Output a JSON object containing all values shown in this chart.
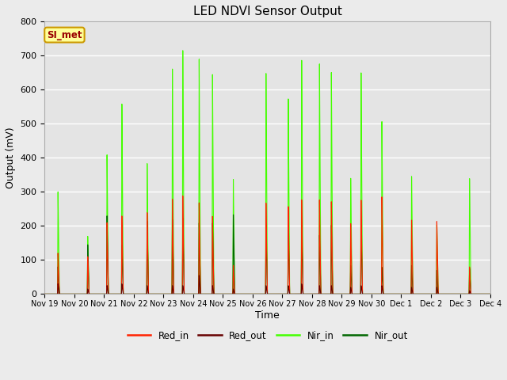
{
  "title": "LED NDVI Sensor Output",
  "xlabel": "Time",
  "ylabel": "Output (mV)",
  "ylim": [
    0,
    800
  ],
  "bg_color": "#ebebeb",
  "plot_bg": "#e4e4e4",
  "annotation_text": "SI_met",
  "annotation_bg": "#ffff99",
  "annotation_border": "#cc9900",
  "annotation_text_color": "#990000",
  "legend_entries": [
    "Red_in",
    "Red_out",
    "Nir_in",
    "Nir_out"
  ],
  "legend_colors": [
    "#ff2200",
    "#660000",
    "#44ff00",
    "#006600"
  ],
  "x_tick_labels": [
    "Nov 19",
    "Nov 20",
    "Nov 21",
    "Nov 22",
    "Nov 23",
    "Nov 24",
    "Nov 25",
    "Nov 26",
    "Nov 27",
    "Nov 28",
    "Nov 29",
    "Nov 30",
    "Dec 1",
    "Dec 2",
    "Dec 3",
    "Dec 4"
  ],
  "grid_color": "#ffffff",
  "spike_positions": [
    0.45,
    1.45,
    2.1,
    2.6,
    3.45,
    4.3,
    4.65,
    5.2,
    5.65,
    6.35,
    7.45,
    8.2,
    8.65,
    9.25,
    9.65,
    10.3,
    10.65,
    11.35,
    12.35,
    13.2,
    14.3
  ],
  "red_in_peaks": [
    120,
    110,
    210,
    230,
    240,
    280,
    290,
    270,
    230,
    85,
    270,
    260,
    280,
    280,
    275,
    210,
    280,
    290,
    220,
    215,
    80
  ],
  "red_out_peaks": [
    30,
    15,
    25,
    30,
    25,
    25,
    25,
    55,
    25,
    15,
    25,
    25,
    30,
    25,
    25,
    20,
    25,
    25,
    20,
    20,
    10
  ],
  "nir_in_peaks": [
    300,
    170,
    410,
    560,
    385,
    665,
    720,
    695,
    650,
    340,
    655,
    580,
    695,
    685,
    660,
    345,
    660,
    515,
    350,
    205,
    340
  ],
  "nir_out_peaks": [
    80,
    145,
    230,
    145,
    215,
    220,
    225,
    210,
    210,
    235,
    205,
    195,
    200,
    175,
    205,
    85,
    200,
    80,
    85,
    70,
    75
  ]
}
